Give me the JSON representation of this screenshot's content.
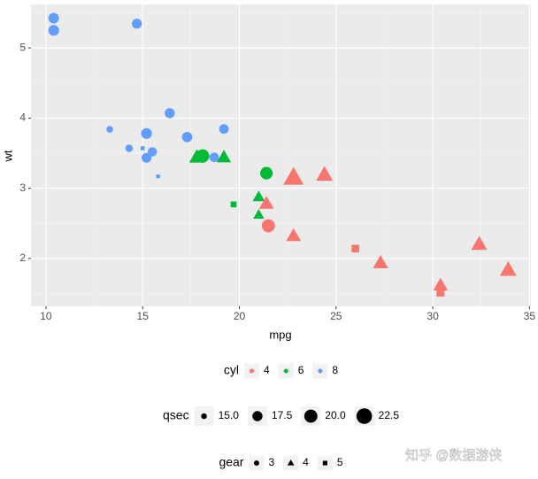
{
  "chart_data": {
    "type": "scatter",
    "x_label": "mpg",
    "y_label": "wt",
    "x": [
      21.0,
      21.0,
      22.8,
      21.4,
      18.7,
      18.1,
      14.3,
      24.4,
      22.8,
      19.2,
      17.8,
      16.4,
      17.3,
      15.2,
      10.4,
      10.4,
      14.7,
      32.4,
      30.4,
      33.9,
      21.5,
      15.5,
      15.2,
      13.3,
      19.2,
      27.3,
      26.0,
      30.4,
      15.8,
      19.7,
      15.0,
      21.4
    ],
    "y": [
      2.62,
      2.875,
      2.32,
      3.215,
      3.44,
      3.46,
      3.57,
      3.19,
      3.15,
      3.44,
      3.44,
      4.07,
      3.73,
      3.78,
      5.25,
      5.424,
      5.345,
      2.2,
      1.615,
      1.835,
      2.465,
      3.52,
      3.435,
      3.84,
      3.845,
      1.935,
      2.14,
      1.513,
      3.17,
      2.77,
      3.57,
      2.78
    ],
    "cyl": [
      6,
      6,
      4,
      6,
      8,
      6,
      8,
      4,
      4,
      6,
      6,
      8,
      8,
      8,
      8,
      8,
      8,
      4,
      4,
      4,
      4,
      8,
      8,
      8,
      8,
      4,
      4,
      4,
      8,
      6,
      8,
      4
    ],
    "qsec": [
      16.46,
      17.02,
      18.61,
      19.44,
      17.02,
      20.22,
      15.84,
      20.0,
      22.9,
      18.3,
      18.9,
      17.4,
      17.6,
      18.0,
      17.98,
      17.82,
      17.42,
      19.47,
      18.52,
      19.9,
      20.01,
      16.87,
      17.3,
      15.41,
      17.05,
      18.9,
      16.7,
      16.9,
      14.5,
      15.5,
      14.6,
      18.6
    ],
    "gear": [
      4,
      4,
      4,
      3,
      3,
      3,
      3,
      4,
      4,
      4,
      4,
      3,
      3,
      3,
      3,
      3,
      3,
      4,
      4,
      4,
      3,
      3,
      3,
      3,
      3,
      4,
      5,
      5,
      5,
      5,
      5,
      4
    ],
    "xlim": [
      9.225,
      35.075
    ],
    "xticks": [
      10,
      15,
      20,
      25,
      30,
      35
    ],
    "ylim": [
      1.3175,
      5.6195
    ],
    "yticks": [
      2,
      3,
      4,
      5
    ],
    "grid": true,
    "legends": {
      "cyl": {
        "title": "cyl",
        "breaks": [
          "4",
          "6",
          "8"
        ],
        "colors": [
          "#f8766d",
          "#00ba38",
          "#619cff"
        ]
      },
      "qsec": {
        "title": "qsec",
        "breaks": [
          {
            "value": 15,
            "label": "15.0"
          },
          {
            "value": 17.5,
            "label": "17.5"
          },
          {
            "value": 20,
            "label": "20.0"
          },
          {
            "value": 22.5,
            "label": "22.5"
          }
        ]
      },
      "gear": {
        "title": "gear",
        "breaks": [
          3,
          4,
          5
        ],
        "shapes": [
          "circle",
          "triangle",
          "square"
        ]
      }
    }
  },
  "watermark": "知乎 @数据游侠"
}
